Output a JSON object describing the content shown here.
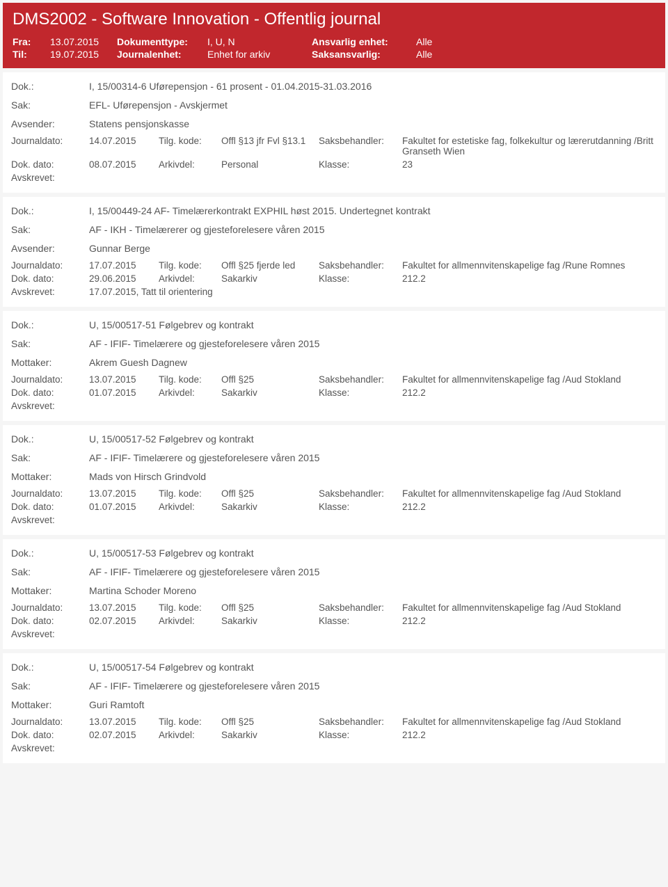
{
  "header": {
    "title": "DMS2002 - Software Innovation - Offentlig journal",
    "fra_label": "Fra:",
    "fra_value": "13.07.2015",
    "til_label": "Til:",
    "til_value": "19.07.2015",
    "doctype_label": "Dokumenttype:",
    "doctype_value": "I, U, N",
    "journalenhet_label": "Journalenhet:",
    "journalenhet_value": "Enhet for arkiv",
    "ansvarlig_label": "Ansvarlig enhet:",
    "ansvarlig_value": "Alle",
    "saks_label": "Saksansvarlig:",
    "saks_value": "Alle"
  },
  "labels": {
    "dok": "Dok.:",
    "sak": "Sak:",
    "avsender": "Avsender:",
    "mottaker": "Mottaker:",
    "journaldato": "Journaldato:",
    "tilgkode": "Tilg. kode:",
    "saksbehandler": "Saksbehandler:",
    "dokdato": "Dok. dato:",
    "arkivdel": "Arkivdel:",
    "klasse": "Klasse:",
    "avskrevet": "Avskrevet:"
  },
  "entries": [
    {
      "dok": "I, 15/00314-6 Uførepensjon  - 61 prosent - 01.04.2015-31.03.2016",
      "sak": "EFL- Uførepensjon - Avskjermet",
      "party_label": "Avsender:",
      "party": "Statens pensjonskasse",
      "journaldato": "14.07.2015",
      "tilgkode": "Offl §13 jfr Fvl §13.1",
      "saksbehandler": "Fakultet for estetiske fag, folkekultur og lærerutdanning /Britt Granseth Wien",
      "dokdato": "08.07.2015",
      "arkivdel": "Personal",
      "klasse": "23",
      "avskrevet": ""
    },
    {
      "dok": "I, 15/00449-24 AF- Timelærerkontrakt EXPHIL høst 2015. Undertegnet kontrakt",
      "sak": "AF - IKH - Timelærerer og gjesteforelesere våren 2015",
      "party_label": "Avsender:",
      "party": "Gunnar Berge",
      "journaldato": "17.07.2015",
      "tilgkode": "Offl §25 fjerde led",
      "saksbehandler": "Fakultet for allmennvitenskapelige fag /Rune Romnes",
      "dokdato": "29.06.2015",
      "arkivdel": "Sakarkiv",
      "klasse": "212.2",
      "avskrevet": "17.07.2015, Tatt til orientering"
    },
    {
      "dok": "U, 15/00517-51 Følgebrev og kontrakt",
      "sak": "AF - IFIF- Timelærere og gjesteforelesere våren 2015",
      "party_label": "Mottaker:",
      "party": "Akrem Guesh Dagnew",
      "journaldato": "13.07.2015",
      "tilgkode": "Offl §25",
      "saksbehandler": "Fakultet for allmennvitenskapelige fag /Aud Stokland",
      "dokdato": "01.07.2015",
      "arkivdel": "Sakarkiv",
      "klasse": "212.2",
      "avskrevet": ""
    },
    {
      "dok": "U, 15/00517-52 Følgebrev og kontrakt",
      "sak": "AF - IFIF- Timelærere og gjesteforelesere våren 2015",
      "party_label": "Mottaker:",
      "party": "Mads von Hirsch Grindvold",
      "journaldato": "13.07.2015",
      "tilgkode": "Offl §25",
      "saksbehandler": "Fakultet for allmennvitenskapelige fag /Aud Stokland",
      "dokdato": "01.07.2015",
      "arkivdel": "Sakarkiv",
      "klasse": "212.2",
      "avskrevet": ""
    },
    {
      "dok": "U, 15/00517-53 Følgebrev og kontrakt",
      "sak": "AF - IFIF- Timelærere og gjesteforelesere våren 2015",
      "party_label": "Mottaker:",
      "party": "Martina Schoder Moreno",
      "journaldato": "13.07.2015",
      "tilgkode": "Offl §25",
      "saksbehandler": "Fakultet for allmennvitenskapelige fag /Aud Stokland",
      "dokdato": "02.07.2015",
      "arkivdel": "Sakarkiv",
      "klasse": "212.2",
      "avskrevet": ""
    },
    {
      "dok": "U, 15/00517-54 Følgebrev og kontrakt",
      "sak": "AF - IFIF- Timelærere og gjesteforelesere våren 2015",
      "party_label": "Mottaker:",
      "party": "Guri Ramtoft",
      "journaldato": "13.07.2015",
      "tilgkode": "Offl §25",
      "saksbehandler": "Fakultet for allmennvitenskapelige fag /Aud Stokland",
      "dokdato": "02.07.2015",
      "arkivdel": "Sakarkiv",
      "klasse": "212.2",
      "avskrevet": ""
    }
  ]
}
